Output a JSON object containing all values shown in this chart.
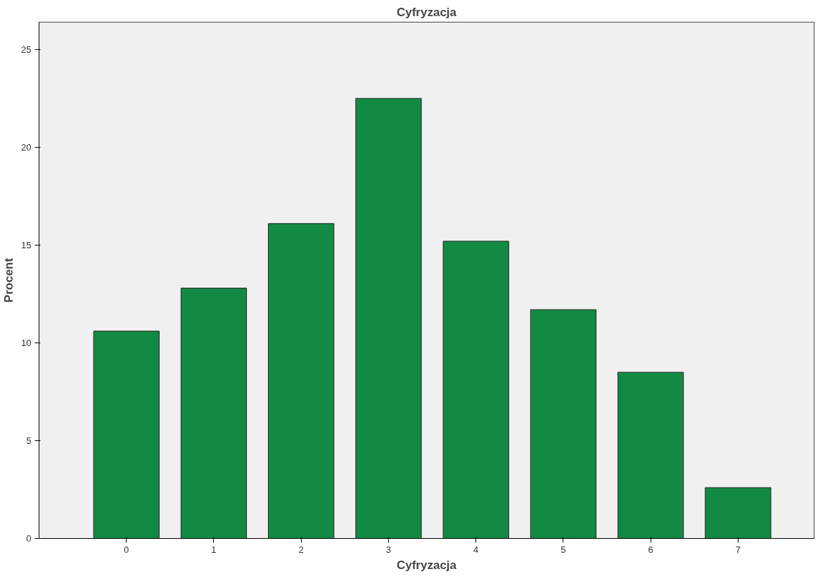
{
  "chart_data": {
    "type": "bar",
    "title": "Cyfryzacja",
    "xlabel": "Cyfryzacja",
    "ylabel": "Procent",
    "categories": [
      "0",
      "1",
      "2",
      "3",
      "4",
      "5",
      "6",
      "7"
    ],
    "values": [
      10.6,
      12.8,
      16.1,
      22.5,
      15.2,
      11.7,
      8.5,
      2.6
    ],
    "color": "#138a43",
    "ylim": [
      0,
      26.4
    ],
    "yticks": [
      0,
      5,
      10,
      15,
      20,
      25
    ],
    "grid": false
  }
}
